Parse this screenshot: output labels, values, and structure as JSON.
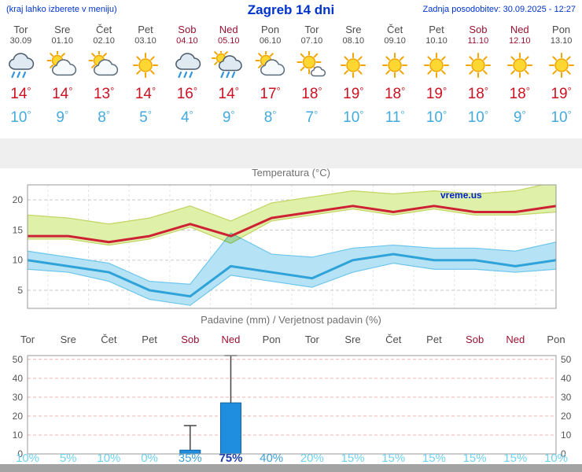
{
  "header": {
    "hint": "(kraj lahko izberete v meniju)",
    "title": "Zagreb 14 dni",
    "updated": "Zadnja posodobitev: 30.09.2025 - 12:27"
  },
  "symbols": {
    "degree": "°"
  },
  "watermark": "vreme.us",
  "colors": {
    "header_blue": "#0033cc",
    "weekday_text": "#4d4d4d",
    "weekend_text": "#991133",
    "tmax_red": "#cc1122",
    "tmin_blue": "#44aadd",
    "prob_low": "#6fd2ee",
    "prob_mid": "#3fa0d8",
    "prob_high": "#1c3fa8",
    "bar_blue": "#1f8ede"
  },
  "days": [
    {
      "name": "Tor",
      "date": "30.09",
      "weekend": false,
      "icon": "rain-cloud-icon",
      "tmax": "14",
      "tmin": "10",
      "prob": "10%"
    },
    {
      "name": "Sre",
      "date": "01.10",
      "weekend": false,
      "icon": "partly-cloudy-icon",
      "tmax": "14",
      "tmin": "9",
      "prob": "5%"
    },
    {
      "name": "Čet",
      "date": "02.10",
      "weekend": false,
      "icon": "partly-cloudy-icon",
      "tmax": "13",
      "tmin": "8",
      "prob": "10%"
    },
    {
      "name": "Pet",
      "date": "03.10",
      "weekend": false,
      "icon": "sunny-icon",
      "tmax": "14",
      "tmin": "5",
      "prob": "0%"
    },
    {
      "name": "Sob",
      "date": "04.10",
      "weekend": true,
      "icon": "rain-cloud-icon",
      "tmax": "16",
      "tmin": "4",
      "prob": "35%"
    },
    {
      "name": "Ned",
      "date": "05.10",
      "weekend": true,
      "icon": "rain-sun-icon",
      "tmax": "14",
      "tmin": "9",
      "prob": "75%"
    },
    {
      "name": "Pon",
      "date": "06.10",
      "weekend": false,
      "icon": "partly-cloudy-icon",
      "tmax": "17",
      "tmin": "8",
      "prob": "40%"
    },
    {
      "name": "Tor",
      "date": "07.10",
      "weekend": false,
      "icon": "sun-small-cloud-icon",
      "tmax": "18",
      "tmin": "7",
      "prob": "20%"
    },
    {
      "name": "Sre",
      "date": "08.10",
      "weekend": false,
      "icon": "sunny-icon",
      "tmax": "19",
      "tmin": "10",
      "prob": "15%"
    },
    {
      "name": "Čet",
      "date": "09.10",
      "weekend": false,
      "icon": "sunny-icon",
      "tmax": "18",
      "tmin": "11",
      "prob": "15%"
    },
    {
      "name": "Pet",
      "date": "10.10",
      "weekend": false,
      "icon": "sunny-icon",
      "tmax": "19",
      "tmin": "10",
      "prob": "15%"
    },
    {
      "name": "Sob",
      "date": "11.10",
      "weekend": true,
      "icon": "sunny-icon",
      "tmax": "18",
      "tmin": "10",
      "prob": "15%"
    },
    {
      "name": "Ned",
      "date": "12.10",
      "weekend": true,
      "icon": "sunny-icon",
      "tmax": "18",
      "tmin": "9",
      "prob": "15%"
    },
    {
      "name": "Pon",
      "date": "13.10",
      "weekend": false,
      "icon": "sunny-icon",
      "tmax": "19",
      "tmin": "10",
      "prob": "10%"
    }
  ],
  "chart_data": [
    {
      "type": "line",
      "title": "Temperatura (°C)",
      "categories": [
        "Tor 30.09",
        "Sre 01.10",
        "Čet 02.10",
        "Pet 03.10",
        "Sob 04.10",
        "Ned 05.10",
        "Pon 06.10",
        "Tor 07.10",
        "Sre 08.10",
        "Čet 09.10",
        "Pet 10.10",
        "Sob 11.10",
        "Ned 12.10",
        "Pon 13.10"
      ],
      "series": [
        {
          "name": "max-temperature",
          "color": "#cc2233",
          "values": [
            14,
            14,
            13,
            14,
            16,
            14,
            17,
            18,
            19,
            18,
            19,
            18,
            18,
            19
          ]
        },
        {
          "name": "min-temperature",
          "color": "#2fa3d9",
          "values": [
            10,
            9,
            8,
            5,
            4,
            9,
            8,
            7,
            10,
            11,
            10,
            10,
            9,
            10
          ]
        }
      ],
      "bands": [
        {
          "name": "min-temperature-range",
          "fill": "#b5e3f5",
          "edge": "#6cc6ec",
          "upper": [
            11.5,
            10.5,
            9.5,
            6.5,
            6,
            14.5,
            11,
            10.5,
            12,
            12.5,
            12,
            12,
            11.5,
            13
          ],
          "lower": [
            8.5,
            8,
            6.5,
            3.5,
            2.5,
            7.5,
            6.5,
            5.5,
            8,
            9.5,
            8.5,
            8.5,
            8,
            8.5
          ]
        },
        {
          "name": "max-temperature-range",
          "fill": "#dff0a8",
          "edge": "#c2d464",
          "upper": [
            17.5,
            17,
            16,
            17,
            19,
            16.5,
            19.5,
            20.5,
            21.5,
            21,
            21.5,
            21,
            21.5,
            23
          ],
          "lower": [
            13.5,
            13.5,
            12.5,
            13.5,
            15.5,
            12.8,
            16.5,
            17.5,
            18.5,
            17.5,
            18.5,
            17.5,
            17.5,
            18
          ]
        }
      ],
      "ylim": [
        2,
        22.5
      ],
      "yticks": [
        5,
        10,
        15,
        20
      ],
      "grid": true,
      "watermark": "vreme.us"
    },
    {
      "type": "bar",
      "title": "Padavine (mm) / Verjetnost padavin (%)",
      "categories": [
        "Tor",
        "Sre",
        "Čet",
        "Pet",
        "Sob",
        "Ned",
        "Pon",
        "Tor",
        "Sre",
        "Čet",
        "Pet",
        "Sob",
        "Ned",
        "Pon"
      ],
      "values": [
        0,
        0,
        0,
        0,
        2,
        27,
        0,
        0,
        0,
        0,
        0,
        0,
        0,
        0
      ],
      "range_max": [
        0,
        0,
        0,
        0,
        15,
        52,
        0,
        0,
        0,
        0,
        0,
        0,
        0,
        0
      ],
      "probability_pct": [
        10,
        5,
        10,
        0,
        35,
        75,
        40,
        20,
        15,
        15,
        15,
        15,
        15,
        10
      ],
      "ylim": [
        0,
        52
      ],
      "yticks": [
        0,
        10,
        20,
        30,
        40,
        50
      ],
      "bar_color": "#1f8ede"
    }
  ]
}
